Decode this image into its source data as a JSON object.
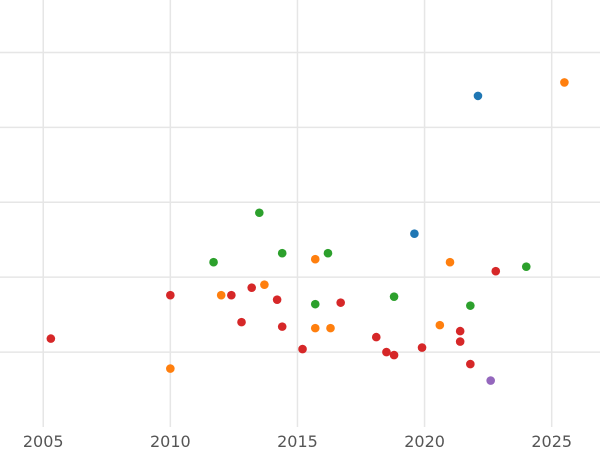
{
  "chart_data": {
    "type": "scatter",
    "title": "",
    "xlabel": "",
    "ylabel": "",
    "xlim": [
      2003.3,
      2026.9
    ],
    "ylim": [
      0,
      28.5
    ],
    "grid": true,
    "x_ticks": [
      2005,
      2010,
      2015,
      2020,
      2025
    ],
    "x_tick_labels": [
      "2005",
      "2010",
      "2015",
      "2020",
      "2025"
    ],
    "y_ticks": [
      5,
      10,
      15,
      20,
      25
    ],
    "colors": {
      "blue": "#1f77b4",
      "orange": "#ff7f0e",
      "green": "#2ca02c",
      "red": "#d62728",
      "purple": "#9467bd"
    },
    "series": [
      {
        "color": "#1f77b4",
        "points": [
          {
            "x": 2022.1,
            "y": 22.1
          },
          {
            "x": 2019.6,
            "y": 12.9
          }
        ]
      },
      {
        "color": "#ff7f0e",
        "points": [
          {
            "x": 2025.5,
            "y": 23.0
          },
          {
            "x": 2010.0,
            "y": 3.9
          },
          {
            "x": 2012.0,
            "y": 8.8
          },
          {
            "x": 2013.7,
            "y": 9.5
          },
          {
            "x": 2015.7,
            "y": 11.2
          },
          {
            "x": 2015.7,
            "y": 6.6
          },
          {
            "x": 2016.3,
            "y": 6.6
          },
          {
            "x": 2020.6,
            "y": 6.8
          },
          {
            "x": 2021.0,
            "y": 11.0
          }
        ]
      },
      {
        "color": "#2ca02c",
        "points": [
          {
            "x": 2013.5,
            "y": 14.3
          },
          {
            "x": 2011.7,
            "y": 11.0
          },
          {
            "x": 2014.4,
            "y": 11.6
          },
          {
            "x": 2016.2,
            "y": 11.6
          },
          {
            "x": 2015.7,
            "y": 8.2
          },
          {
            "x": 2018.8,
            "y": 8.7
          },
          {
            "x": 2021.8,
            "y": 8.1
          },
          {
            "x": 2024.0,
            "y": 10.7
          }
        ]
      },
      {
        "color": "#d62728",
        "points": [
          {
            "x": 2005.3,
            "y": 5.9
          },
          {
            "x": 2010.0,
            "y": 8.8
          },
          {
            "x": 2012.4,
            "y": 8.8
          },
          {
            "x": 2012.8,
            "y": 7.0
          },
          {
            "x": 2013.2,
            "y": 9.3
          },
          {
            "x": 2014.2,
            "y": 8.5
          },
          {
            "x": 2014.4,
            "y": 6.7
          },
          {
            "x": 2015.2,
            "y": 5.2
          },
          {
            "x": 2016.7,
            "y": 8.3
          },
          {
            "x": 2018.1,
            "y": 6.0
          },
          {
            "x": 2018.5,
            "y": 5.0
          },
          {
            "x": 2018.8,
            "y": 4.8
          },
          {
            "x": 2019.9,
            "y": 5.3
          },
          {
            "x": 2021.4,
            "y": 6.4
          },
          {
            "x": 2021.4,
            "y": 5.7
          },
          {
            "x": 2021.8,
            "y": 4.2
          },
          {
            "x": 2022.8,
            "y": 10.4
          }
        ]
      },
      {
        "color": "#9467bd",
        "points": [
          {
            "x": 2022.6,
            "y": 3.1
          }
        ]
      }
    ]
  }
}
